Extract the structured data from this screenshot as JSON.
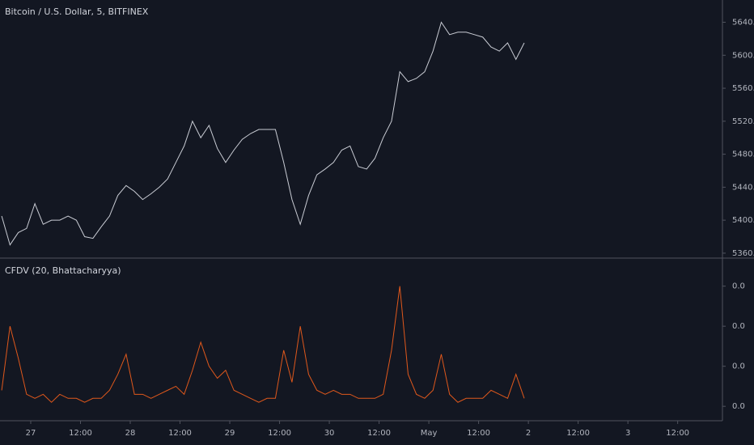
{
  "chart_data": [
    {
      "type": "line",
      "title": "Bitcoin / U.S. Dollar, 5, BITFINEX",
      "color": "#c9ccd4",
      "x": [
        -7,
        -5,
        -3,
        -1,
        1,
        3,
        5,
        7,
        9,
        11,
        13,
        15,
        17,
        19,
        21,
        23,
        25,
        27,
        29,
        31,
        33,
        35,
        37,
        39,
        41,
        43,
        45,
        47,
        49,
        51,
        53,
        55,
        57,
        59,
        61,
        63,
        65,
        67,
        69,
        71,
        73,
        75,
        77,
        79,
        81,
        83,
        85,
        87,
        89,
        91,
        93,
        95,
        97,
        99,
        101,
        103,
        105,
        107,
        109,
        111,
        113,
        115,
        117,
        119
      ],
      "values": [
        5405,
        5370,
        5385,
        5390,
        5420,
        5395,
        5400,
        5400,
        5405,
        5400,
        5380,
        5378,
        5392,
        5405,
        5430,
        5442,
        5435,
        5425,
        5432,
        5440,
        5450,
        5470,
        5490,
        5520,
        5500,
        5515,
        5487,
        5470,
        5485,
        5498,
        5505,
        5510,
        5510,
        5510,
        5470,
        5425,
        5395,
        5430,
        5455,
        5462,
        5470,
        5485,
        5490,
        5465,
        5462,
        5475,
        5500,
        5520,
        5580,
        5568,
        5572,
        5580,
        5605,
        5640,
        5625,
        5628,
        5628,
        5625,
        5622,
        5610,
        5605,
        5615,
        5595,
        5615
      ],
      "xlim": [
        -7.41,
        166.8
      ],
      "ylim": [
        5355,
        5667
      ],
      "yticks": [
        {
          "value": 5640,
          "label": "5640.0"
        },
        {
          "value": 5600,
          "label": "5600.0"
        },
        {
          "value": 5560,
          "label": "5560.0"
        },
        {
          "value": 5520,
          "label": "5520.0"
        },
        {
          "value": 5480,
          "label": "5480.0"
        },
        {
          "value": 5440,
          "label": "5440.0"
        },
        {
          "value": 5400,
          "label": "5400.0"
        },
        {
          "value": 5360,
          "label": "5360.0"
        }
      ]
    },
    {
      "type": "line",
      "title": "CFDV (20, Bhattacharyya)",
      "color": "#e0581c",
      "x": [
        -7,
        -5,
        -3,
        -1,
        1,
        3,
        5,
        7,
        9,
        11,
        13,
        15,
        17,
        19,
        21,
        23,
        25,
        27,
        29,
        31,
        33,
        35,
        37,
        39,
        41,
        43,
        45,
        47,
        49,
        51,
        53,
        55,
        57,
        59,
        61,
        63,
        65,
        67,
        69,
        71,
        73,
        75,
        77,
        79,
        81,
        83,
        85,
        87,
        89,
        91,
        93,
        95,
        97,
        99,
        101,
        103,
        105,
        107,
        109,
        111,
        113,
        115,
        117,
        119
      ],
      "values": [
        0.004,
        0.02,
        0.012,
        0.003,
        0.002,
        0.003,
        0.001,
        0.003,
        0.002,
        0.002,
        0.001,
        0.002,
        0.002,
        0.004,
        0.008,
        0.013,
        0.003,
        0.003,
        0.002,
        0.003,
        0.004,
        0.005,
        0.003,
        0.009,
        0.016,
        0.01,
        0.007,
        0.009,
        0.004,
        0.003,
        0.002,
        0.001,
        0.002,
        0.002,
        0.014,
        0.006,
        0.02,
        0.008,
        0.004,
        0.003,
        0.004,
        0.003,
        0.003,
        0.002,
        0.002,
        0.002,
        0.003,
        0.014,
        0.03,
        0.008,
        0.003,
        0.002,
        0.004,
        0.013,
        0.003,
        0.001,
        0.002,
        0.002,
        0.002,
        0.004,
        0.003,
        0.002,
        0.008,
        0.002
      ],
      "xlim": [
        -7.41,
        166.8
      ],
      "ylim": [
        -0.0036,
        0.0368
      ],
      "yticks": [
        {
          "value": 0.03,
          "label": "0.0"
        },
        {
          "value": 0.02,
          "label": "0.0"
        },
        {
          "value": 0.01,
          "label": "0.0"
        },
        {
          "value": 0,
          "label": "0.0"
        }
      ],
      "xticks": [
        {
          "value": 0,
          "label": "27"
        },
        {
          "value": 12,
          "label": "12:00"
        },
        {
          "value": 24,
          "label": "28"
        },
        {
          "value": 36,
          "label": "12:00"
        },
        {
          "value": 48,
          "label": "29"
        },
        {
          "value": 60,
          "label": "12:00"
        },
        {
          "value": 72,
          "label": "30"
        },
        {
          "value": 84,
          "label": "12:00"
        },
        {
          "value": 96,
          "label": "May"
        },
        {
          "value": 108,
          "label": "12:00"
        },
        {
          "value": 120,
          "label": "2"
        },
        {
          "value": 132,
          "label": "12:00"
        },
        {
          "value": 144,
          "label": "3"
        },
        {
          "value": 156,
          "label": "12:00"
        }
      ]
    }
  ]
}
